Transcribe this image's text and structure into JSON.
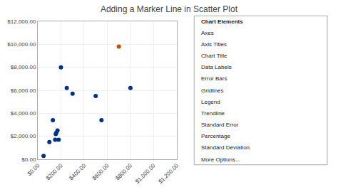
{
  "chart_data": {
    "type": "scatter",
    "title": "Adding a Marker Line in Scatter Plot",
    "series": [
      {
        "color": "#003087",
        "x": [
          50,
          100,
          130,
          150,
          155,
          160,
          170,
          180,
          200,
          250,
          300,
          500,
          550,
          800
        ],
        "values": [
          300,
          1500,
          3400,
          1700,
          2200,
          2300,
          2500,
          1700,
          8000,
          6200,
          5700,
          5500,
          3400,
          6200
        ]
      },
      {
        "color": "#C05000",
        "x": [
          700
        ],
        "values": [
          9800
        ]
      }
    ],
    "xlim": [
      0,
      1200
    ],
    "ylim": [
      0,
      12000
    ],
    "xticks": [
      {
        "value": 0,
        "label": "$0.00"
      },
      {
        "value": 200,
        "label": "$200.00"
      },
      {
        "value": 400,
        "label": "$400.00"
      },
      {
        "value": 600,
        "label": "$600.00"
      },
      {
        "value": 800,
        "label": "$800.00"
      },
      {
        "value": 1000,
        "label": "$1,000.00"
      },
      {
        "value": 1200,
        "label": "$1,200.00"
      }
    ],
    "yticks": [
      {
        "value": 0,
        "label": "$0.00"
      },
      {
        "value": 2000,
        "label": "$2,000.00"
      },
      {
        "value": 4000,
        "label": "$4,000.00"
      },
      {
        "value": 6000,
        "label": "$6,000.00"
      },
      {
        "value": 8000,
        "label": "$8,000.00"
      },
      {
        "value": 10000,
        "label": "$10,000.00"
      },
      {
        "value": 12000,
        "label": "$12,000.00"
      }
    ],
    "grid": true,
    "annotations": [
      "Chart Elements",
      "Axes",
      "Axis Titles",
      "Chart Title",
      "Data Labels",
      "Error Bars",
      "Gridlines",
      "Legend",
      "Trendline",
      "Standard Error",
      "Percentage",
      "Standard Deviation",
      "More Options..."
    ]
  }
}
